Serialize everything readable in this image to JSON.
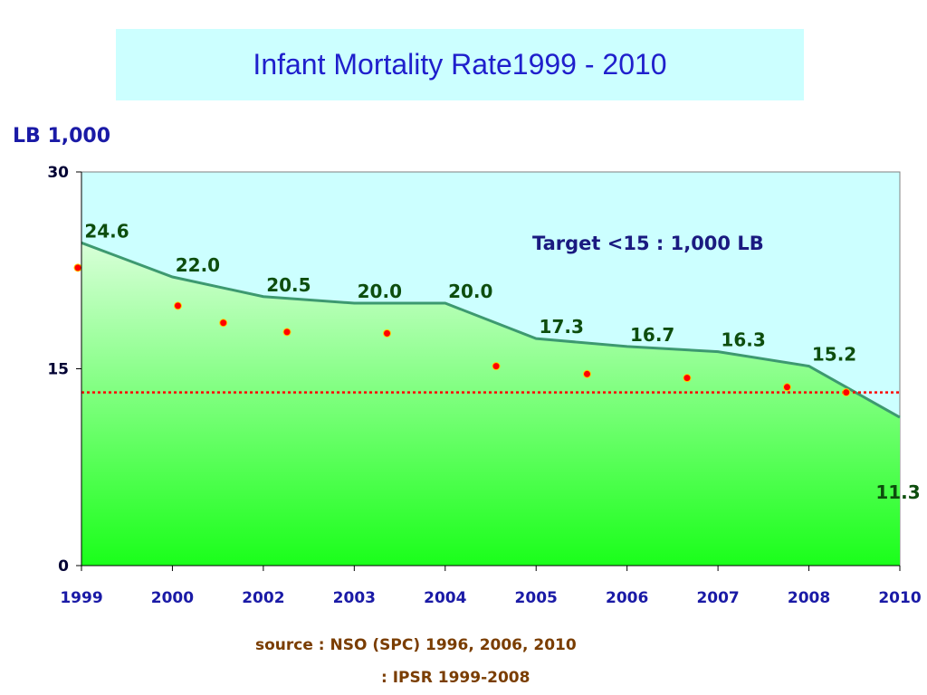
{
  "title": "Infant Mortality Rate1999 - 2010",
  "ylabel": "LB 1,000",
  "annotation": "Target <15 : 1,000 LB",
  "source_lines": [
    "source : NSO (SPC) 1996, 2006, 2010",
    ": IPSR 1999-2008"
  ],
  "colors": {
    "title_bg": "#ccffff",
    "title_text": "#1f1fcc",
    "plot_bg": "#ccffff",
    "area_top": "#d8ffd8",
    "area_bottom": "#1aff1a",
    "line": "#3d9970",
    "target_dots": "#ff0000",
    "data_labels": "#0d4d0d"
  },
  "chart_data": {
    "type": "area",
    "categories": [
      "1999",
      "2000",
      "2002",
      "2003",
      "2004",
      "2005",
      "2006",
      "2007",
      "2008",
      "2010"
    ],
    "series": [
      {
        "values": [
          24.6,
          22.0,
          20.5,
          20.0,
          20.0,
          17.3,
          16.7,
          16.3,
          15.2,
          11.3
        ]
      }
    ],
    "data_labels": [
      "24.6",
      "22.0",
      "20.5",
      "20.0",
      "20.0",
      "17.3",
      "16.7",
      "16.3",
      "15.2",
      "11.3"
    ],
    "target_series": {
      "x": [
        1999,
        2000.2,
        2001.2,
        2002.3,
        2003.4,
        2004.6,
        2005.6,
        2006.7,
        2007.8,
        2008.9
      ],
      "values": [
        22.7,
        19.8,
        18.5,
        17.8,
        17.7,
        15.2,
        14.6,
        14.3,
        13.6,
        13.2
      ]
    },
    "target_line": 13.2,
    "ylim": [
      0,
      30
    ],
    "yticks": [
      0,
      15,
      30
    ],
    "grid": false,
    "legend": "none"
  }
}
